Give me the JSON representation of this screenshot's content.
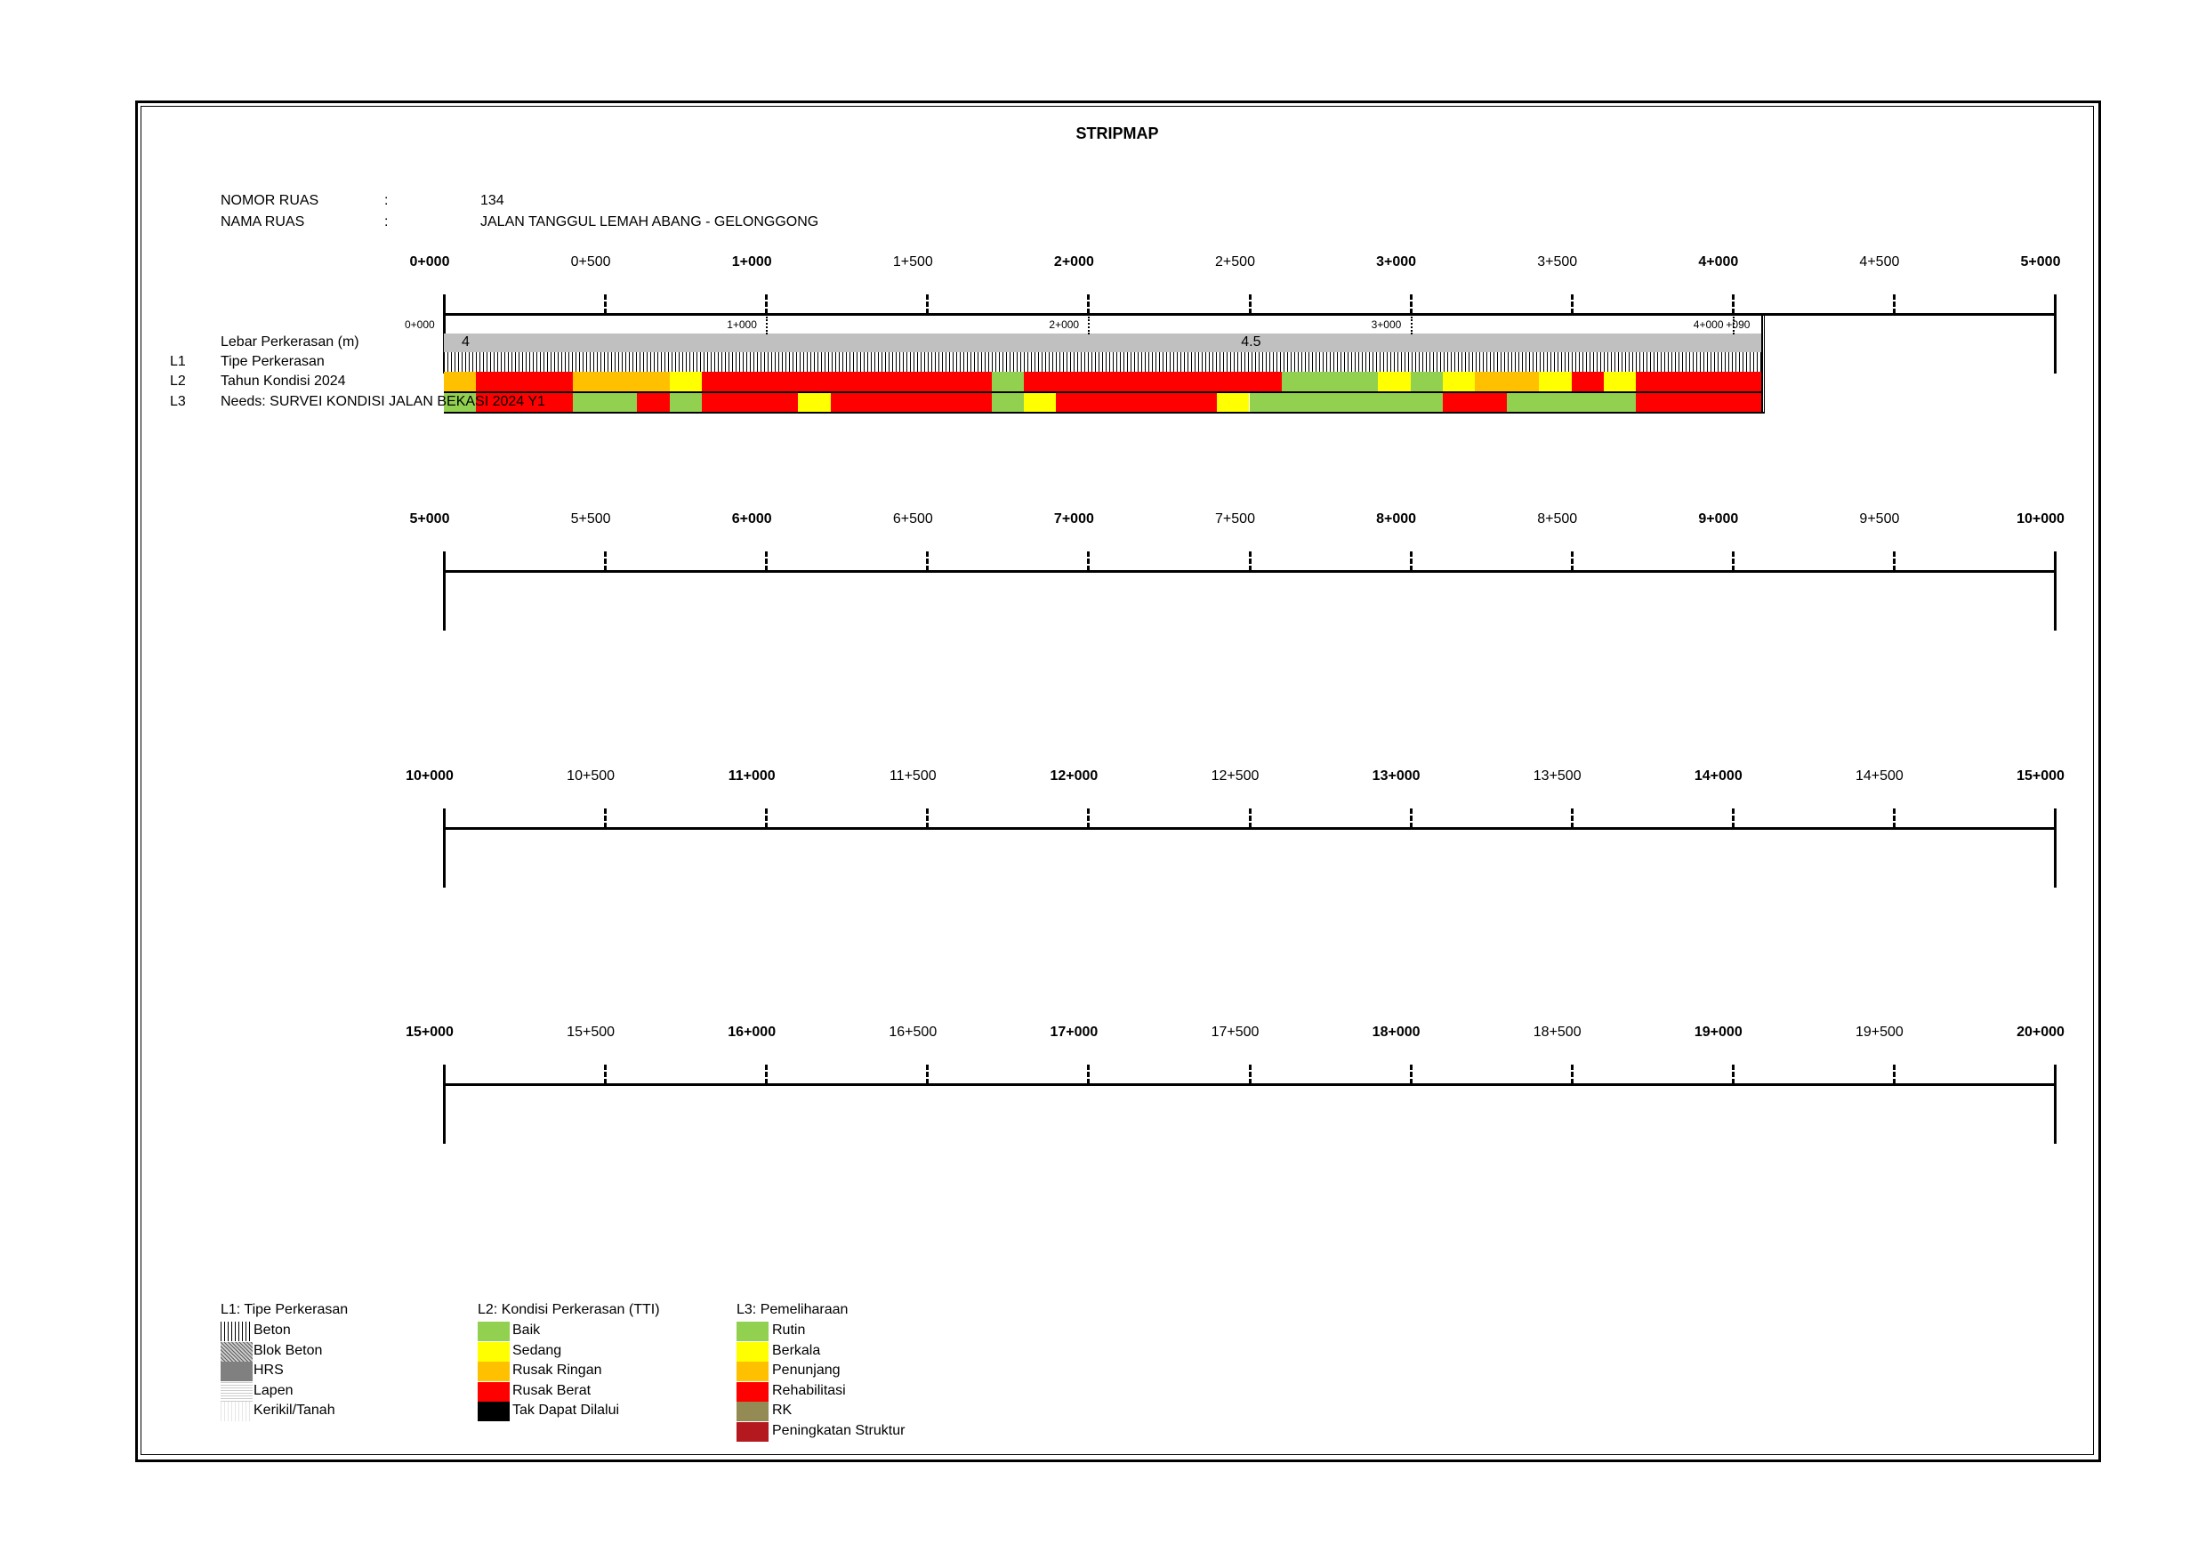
{
  "title": "STRIPMAP",
  "info": {
    "nomor_label": "NOMOR RUAS",
    "nomor_sep": ":",
    "nomor_value": "134",
    "nama_label": "NAMA RUAS",
    "nama_sep": ":",
    "nama_value": "JALAN TANGGUL LEMAH ABANG - GELONGGONG"
  },
  "rows": [
    {
      "labels": [
        "0+000",
        "0+500",
        "1+000",
        "1+500",
        "2+000",
        "2+500",
        "3+000",
        "3+500",
        "4+000",
        "4+500",
        "5+000"
      ]
    },
    {
      "labels": [
        "5+000",
        "5+500",
        "6+000",
        "6+500",
        "7+000",
        "7+500",
        "8+000",
        "8+500",
        "9+000",
        "9+500",
        "10+000"
      ]
    },
    {
      "labels": [
        "10+000",
        "10+500",
        "11+000",
        "11+500",
        "12+000",
        "12+500",
        "13+000",
        "13+500",
        "14+000",
        "14+500",
        "15+000"
      ]
    },
    {
      "labels": [
        "15+000",
        "15+500",
        "16+000",
        "16+500",
        "17+000",
        "17+500",
        "18+000",
        "18+500",
        "19+000",
        "19+500",
        "20+000"
      ]
    }
  ],
  "strip": {
    "labels": {
      "lebar": "Lebar Perkerasan (m)",
      "l1_code": "L1",
      "l1": "Tipe Perkerasan",
      "l2_code": "L2",
      "l2": "Tahun Kondisi 2024",
      "l3_code": "L3",
      "l3": "Needs: SURVEI KONDISI JALAN BEKASI 2024 Y1"
    },
    "km_markers": [
      "0+000",
      "1+000",
      "2+000",
      "3+000",
      "4+000"
    ],
    "end_label": "+090",
    "end_km": 4.09,
    "lebar": [
      {
        "from": 0,
        "to": 0.1,
        "value": "4"
      },
      {
        "from": 0.1,
        "to": 4.09,
        "value": "4.5"
      }
    ],
    "l1_type": "Beton",
    "l2": [
      {
        "from": 0,
        "to": 0.1,
        "c": "Rusak Ringan"
      },
      {
        "from": 0.1,
        "to": 0.4,
        "c": "Rusak Berat"
      },
      {
        "from": 0.4,
        "to": 0.7,
        "c": "Rusak Ringan"
      },
      {
        "from": 0.7,
        "to": 0.8,
        "c": "Sedang"
      },
      {
        "from": 0.8,
        "to": 1.7,
        "c": "Rusak Berat"
      },
      {
        "from": 1.7,
        "to": 1.8,
        "c": "Baik"
      },
      {
        "from": 1.8,
        "to": 2.6,
        "c": "Rusak Berat"
      },
      {
        "from": 2.6,
        "to": 2.9,
        "c": "Baik"
      },
      {
        "from": 2.9,
        "to": 3.0,
        "c": "Sedang"
      },
      {
        "from": 3.0,
        "to": 3.1,
        "c": "Baik"
      },
      {
        "from": 3.1,
        "to": 3.2,
        "c": "Sedang"
      },
      {
        "from": 3.2,
        "to": 3.4,
        "c": "Rusak Ringan"
      },
      {
        "from": 3.4,
        "to": 3.5,
        "c": "Sedang"
      },
      {
        "from": 3.5,
        "to": 3.6,
        "c": "Rusak Berat"
      },
      {
        "from": 3.6,
        "to": 3.7,
        "c": "Sedang"
      },
      {
        "from": 3.7,
        "to": 4.09,
        "c": "Rusak Berat"
      }
    ],
    "l3": [
      {
        "from": 0,
        "to": 0.1,
        "c": "Rutin"
      },
      {
        "from": 0.1,
        "to": 0.4,
        "c": "Rehabilitasi"
      },
      {
        "from": 0.4,
        "to": 0.6,
        "c": "Rutin"
      },
      {
        "from": 0.6,
        "to": 0.7,
        "c": "Rehabilitasi"
      },
      {
        "from": 0.7,
        "to": 0.8,
        "c": "Rutin"
      },
      {
        "from": 0.8,
        "to": 1.1,
        "c": "Rehabilitasi"
      },
      {
        "from": 1.1,
        "to": 1.2,
        "c": "Berkala"
      },
      {
        "from": 1.2,
        "to": 1.7,
        "c": "Rehabilitasi"
      },
      {
        "from": 1.7,
        "to": 1.8,
        "c": "Rutin"
      },
      {
        "from": 1.8,
        "to": 1.9,
        "c": "Berkala"
      },
      {
        "from": 1.9,
        "to": 2.4,
        "c": "Rehabilitasi"
      },
      {
        "from": 2.4,
        "to": 2.5,
        "c": "Berkala"
      },
      {
        "from": 2.5,
        "to": 3.1,
        "c": "Rutin"
      },
      {
        "from": 3.1,
        "to": 3.3,
        "c": "Rehabilitasi"
      },
      {
        "from": 3.3,
        "to": 3.7,
        "c": "Rutin"
      },
      {
        "from": 3.7,
        "to": 4.09,
        "c": "Rehabilitasi"
      }
    ]
  },
  "colors": {
    "Baik": "#92d050",
    "Sedang": "#ffff00",
    "Rusak Ringan": "#ffc000",
    "Rusak Berat": "#ff0000",
    "Tak Dapat Dilalui": "#000000",
    "Rutin": "#92d050",
    "Berkala": "#ffff00",
    "Penunjang": "#ffc000",
    "Rehabilitasi": "#ff0000",
    "RK": "#948a54",
    "Peningkatan Struktur": "#b3191f",
    "lebar": "#c0c0c0"
  },
  "legend": {
    "l1": {
      "title": "L1: Tipe Perkerasan",
      "items": [
        {
          "label": "Beton",
          "cls": "beton"
        },
        {
          "label": "Blok Beton",
          "cls": "blok"
        },
        {
          "label": "HRS",
          "cls": "hrs"
        },
        {
          "label": "Lapen",
          "cls": "lapen"
        },
        {
          "label": "Kerikil/Tanah",
          "cls": "kerikil"
        }
      ]
    },
    "l2": {
      "title": "L2: Kondisi Perkerasan (TTI)",
      "items": [
        "Baik",
        "Sedang",
        "Rusak Ringan",
        "Rusak Berat",
        "Tak Dapat Dilalui"
      ]
    },
    "l3": {
      "title": "L3: Pemeliharaan",
      "items": [
        "Rutin",
        "Berkala",
        "Penunjang",
        "Rehabilitasi",
        "RK",
        "Peningkatan Struktur"
      ]
    }
  }
}
